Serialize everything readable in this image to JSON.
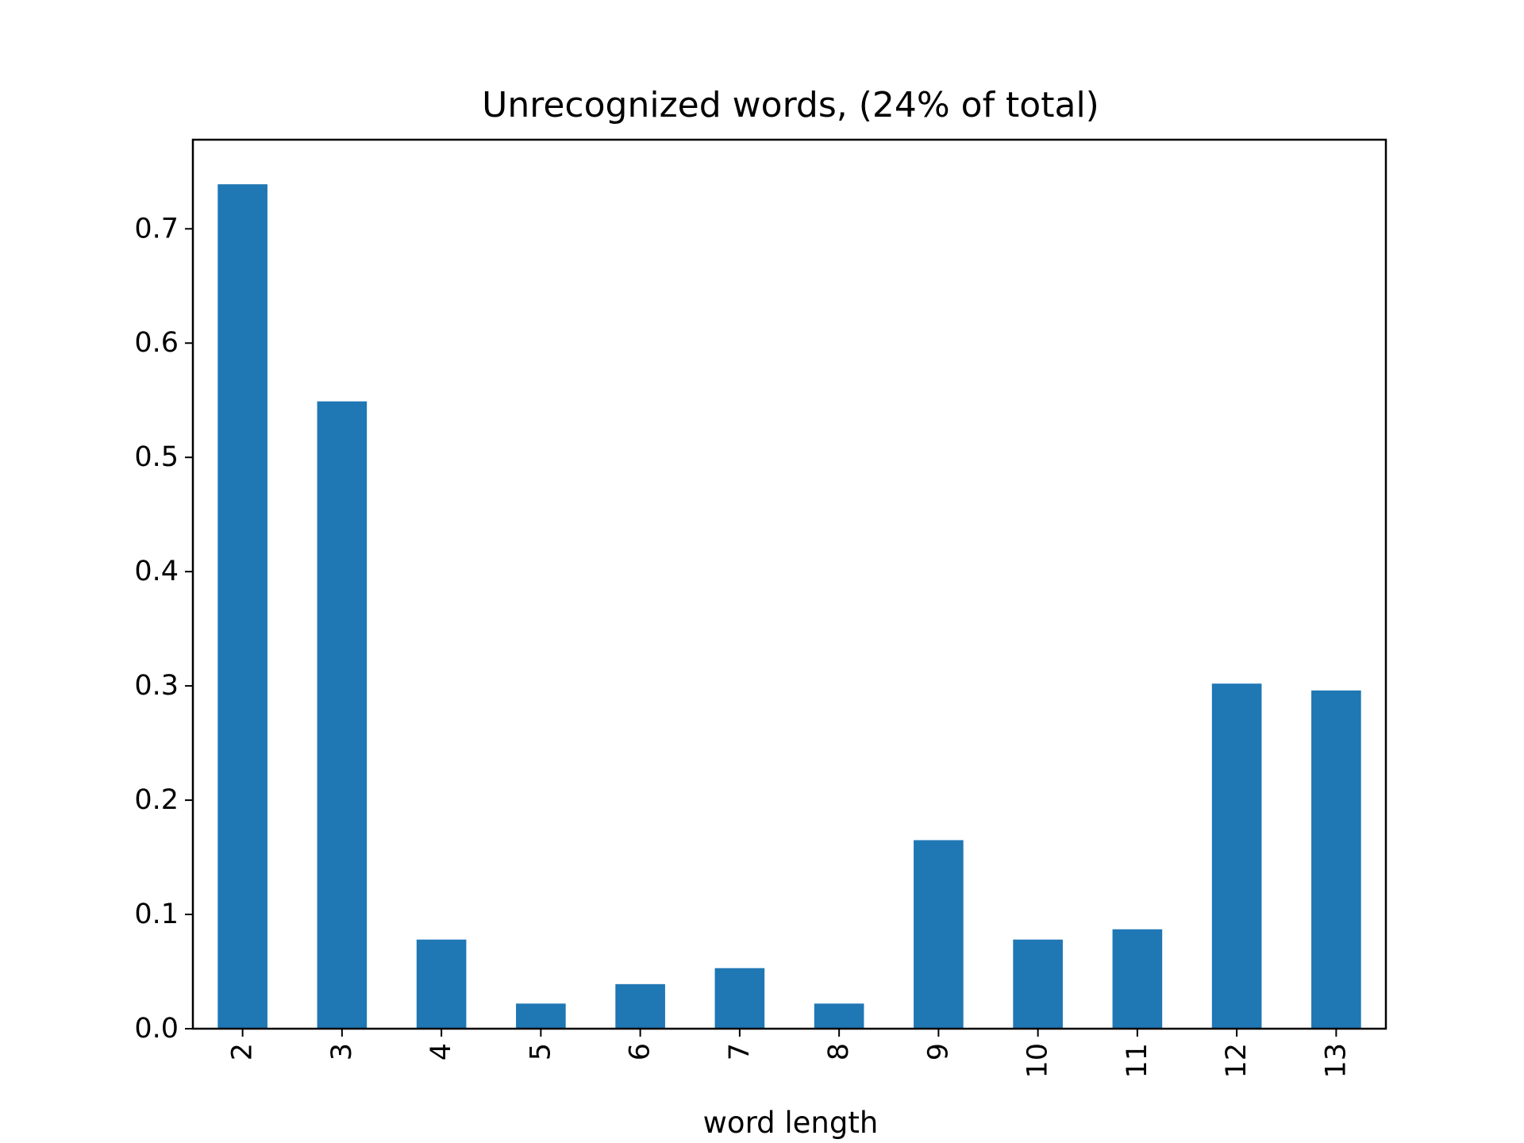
{
  "chart_data": {
    "type": "bar",
    "title": "Unrecognized words, (24% of total)",
    "xlabel": "word length",
    "ylabel": "",
    "categories": [
      "2",
      "3",
      "4",
      "5",
      "6",
      "7",
      "8",
      "9",
      "10",
      "11",
      "12",
      "13"
    ],
    "values": [
      0.739,
      0.549,
      0.078,
      0.022,
      0.039,
      0.053,
      0.022,
      0.165,
      0.078,
      0.087,
      0.302,
      0.296
    ],
    "ylim": [
      0,
      0.778
    ],
    "yticks": [
      0.0,
      0.1,
      0.2,
      0.3,
      0.4,
      0.5,
      0.6,
      0.7
    ],
    "ytick_labels": [
      "0.0",
      "0.1",
      "0.2",
      "0.3",
      "0.4",
      "0.5",
      "0.6",
      "0.7"
    ],
    "x_tick_rotation": "vertical",
    "grid": false,
    "legend": "none",
    "bar_color": "#1f77b4"
  }
}
